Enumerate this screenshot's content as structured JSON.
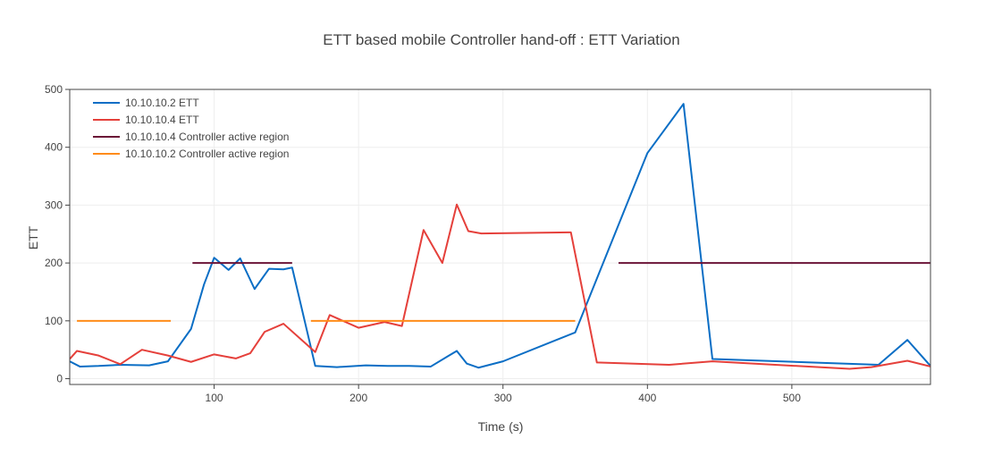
{
  "chart_data": {
    "type": "line",
    "title": "ETT based mobile Controller hand-off : ETT Variation",
    "xlabel": "Time (s)",
    "ylabel": "ETT",
    "xlim": [
      0,
      596
    ],
    "ylim": [
      -10,
      500
    ],
    "xticks": [
      100,
      200,
      300,
      400,
      500
    ],
    "yticks": [
      0,
      100,
      200,
      300,
      400,
      500
    ],
    "grid": true,
    "legend_position": "top-left",
    "series": [
      {
        "name": "10.10.10.2 ETT",
        "color": "#0b6ec5",
        "x": [
          0,
          7,
          20,
          35,
          55,
          68,
          84,
          93,
          100,
          110,
          118,
          128,
          138,
          148,
          154,
          170,
          185,
          205,
          220,
          235,
          250,
          262,
          268,
          275,
          283,
          300,
          350,
          400,
          425,
          445,
          560,
          580,
          596
        ],
        "y": [
          30,
          21,
          22,
          24,
          23,
          30,
          86,
          163,
          209,
          188,
          208,
          155,
          190,
          189,
          192,
          22,
          20,
          23,
          22,
          22,
          21,
          39,
          48,
          26,
          19,
          30,
          80,
          390,
          475,
          34,
          24,
          67,
          22
        ]
      },
      {
        "name": "10.10.10.4 ETT",
        "color": "#e5403b",
        "x": [
          0,
          5,
          20,
          35,
          50,
          68,
          84,
          100,
          115,
          125,
          135,
          148,
          170,
          180,
          200,
          218,
          230,
          245,
          258,
          268,
          276,
          285,
          347,
          365,
          415,
          445,
          540,
          555,
          580,
          596
        ],
        "y": [
          34,
          48,
          40,
          25,
          50,
          40,
          29,
          42,
          35,
          44,
          81,
          95,
          46,
          110,
          88,
          98,
          91,
          257,
          200,
          301,
          255,
          251,
          253,
          28,
          24,
          30,
          17,
          20,
          31,
          21
        ]
      },
      {
        "name": "10.10.10.4 Controller active region",
        "color": "#6b1437",
        "x": [
          85,
          154,
          null,
          380,
          596
        ],
        "y": [
          200,
          200,
          null,
          200,
          200
        ]
      },
      {
        "name": "10.10.10.2 Controller active region",
        "color": "#ff8c1a",
        "x": [
          5,
          70,
          null,
          167,
          350
        ],
        "y": [
          100,
          100,
          null,
          100,
          100
        ]
      }
    ]
  }
}
